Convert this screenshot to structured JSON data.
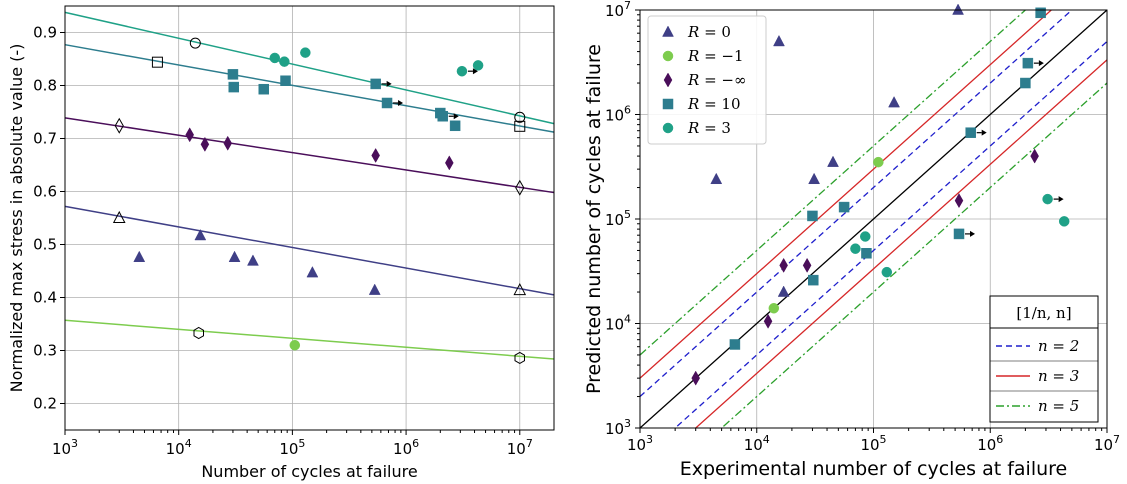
{
  "chart_data": [
    {
      "type": "scatter",
      "xlabel": "Number of cycles at failure",
      "ylabel": "Normalized max stress in absolute value (-)",
      "xscale": "log",
      "xlim": [
        1000,
        20000000
      ],
      "ylim": [
        0.15,
        0.95
      ],
      "xticks": [
        1000,
        10000,
        100000,
        1000000,
        10000000
      ],
      "xtick_labels": [
        [
          "10",
          "3"
        ],
        [
          "10",
          "4"
        ],
        [
          "10",
          "5"
        ],
        [
          "10",
          "6"
        ],
        [
          "10",
          "7"
        ]
      ],
      "yticks": [
        0.2,
        0.3,
        0.4,
        0.5,
        0.6,
        0.7,
        0.8,
        0.9
      ],
      "ytick_labels": [
        "0.2",
        "0.3",
        "0.4",
        "0.5",
        "0.6",
        "0.7",
        "0.8",
        "0.9"
      ],
      "grid": true,
      "series": [
        {
          "marker": "triangle",
          "color": "#3f3f86",
          "points": [
            [
              4500,
              0.476
            ],
            [
              15500,
              0.517
            ],
            [
              31000,
              0.476
            ],
            [
              45000,
              0.469
            ],
            [
              150000,
              0.447
            ],
            [
              530000,
              0.414
            ]
          ],
          "fit": [
            [
              1000,
              0.572
            ],
            [
              20000000,
              0.405
            ]
          ],
          "open_points": [
            {
              "marker": "triangle",
              "pt": [
                3000,
                0.55
              ]
            },
            {
              "marker": "triangle",
              "pt": [
                10000000,
                0.414
              ]
            }
          ]
        },
        {
          "marker": "circle",
          "color": "#7dcc4e",
          "points": [
            [
              105000,
              0.31
            ]
          ],
          "fit": [
            [
              1000,
              0.357
            ],
            [
              20000000,
              0.284
            ]
          ],
          "open_points": [
            {
              "marker": "hexagon",
              "pt": [
                15000,
                0.333
              ]
            },
            {
              "marker": "hexagon",
              "pt": [
                10000000,
                0.286
              ]
            }
          ]
        },
        {
          "marker": "diamond",
          "color": "#4a0e5a",
          "points": [
            [
              12500,
              0.707
            ],
            [
              17000,
              0.689
            ],
            [
              27000,
              0.691
            ],
            [
              540000,
              0.668
            ],
            [
              2400000,
              0.654
            ]
          ],
          "fit": [
            [
              1000,
              0.739
            ],
            [
              20000000,
              0.598
            ]
          ],
          "open_points": [
            {
              "marker": "diamond",
              "pt": [
                3000,
                0.724
              ]
            },
            {
              "marker": "diamond",
              "pt": [
                10000000,
                0.607
              ]
            }
          ]
        },
        {
          "marker": "square",
          "color": "#2d7d8e",
          "points": [
            [
              30000,
              0.821
            ],
            [
              30500,
              0.797
            ],
            [
              56000,
              0.793
            ],
            [
              87000,
              0.809
            ],
            [
              540000,
              0.803
            ],
            [
              680000,
              0.767
            ],
            [
              2000000,
              0.748
            ],
            [
              2100000,
              0.742
            ],
            [
              2700000,
              0.724
            ]
          ],
          "arrows": [
            [
              540000,
              0.803
            ],
            [
              680000,
              0.767
            ],
            [
              2100000,
              0.742
            ]
          ],
          "fit": [
            [
              1000,
              0.877
            ],
            [
              20000000,
              0.712
            ]
          ],
          "open_points": [
            {
              "marker": "square",
              "pt": [
                6500,
                0.844
              ]
            },
            {
              "marker": "square",
              "pt": [
                10000000,
                0.723
              ]
            }
          ]
        },
        {
          "marker": "circle",
          "color": "#1fa187",
          "points": [
            [
              70000,
              0.852
            ],
            [
              85000,
              0.845
            ],
            [
              130000,
              0.862
            ],
            [
              3100000,
              0.827
            ],
            [
              4300000,
              0.838
            ]
          ],
          "arrows": [
            [
              3100000,
              0.827
            ]
          ],
          "fit": [
            [
              1000,
              0.938
            ],
            [
              20000000,
              0.728
            ]
          ],
          "open_points": [
            {
              "marker": "circle",
              "pt": [
                14000,
                0.88
              ]
            },
            {
              "marker": "circle",
              "pt": [
                10000000,
                0.74
              ]
            }
          ]
        }
      ]
    },
    {
      "type": "scatter",
      "xlabel": "Experimental number of cycles at failure",
      "ylabel": "Predicted number of cycles at failure",
      "xscale": "log",
      "yscale": "log",
      "xlim": [
        1000,
        10000000
      ],
      "ylim": [
        1000,
        10000000
      ],
      "ticks": [
        1000,
        10000,
        100000,
        1000000,
        10000000
      ],
      "tick_labels": [
        [
          "10",
          "3"
        ],
        [
          "10",
          "4"
        ],
        [
          "10",
          "5"
        ],
        [
          "10",
          "6"
        ],
        [
          "10",
          "7"
        ]
      ],
      "grid": true,
      "legend": {
        "placement": "top-left",
        "entries": [
          {
            "label_italic": "R",
            "label_rest": " = 0",
            "marker": "triangle",
            "color": "#3f3f86"
          },
          {
            "label_italic": "R",
            "label_rest": " = −1",
            "marker": "circle",
            "color": "#7dcc4e"
          },
          {
            "label_italic": "R",
            "label_rest": " = −∞",
            "marker": "diamond",
            "color": "#4a0e5a"
          },
          {
            "label_italic": "R",
            "label_rest": " = 10",
            "marker": "square",
            "color": "#2d7d8e"
          },
          {
            "label_italic": "R",
            "label_rest": " = 3",
            "marker": "circle",
            "color": "#1fa187"
          }
        ]
      },
      "band_legend": {
        "placement": "bottom-right",
        "title": "[1/n, n]",
        "entries": [
          {
            "label": "n = 2",
            "factor": 2,
            "color": "#1f1fcc",
            "style": "dashed"
          },
          {
            "label": "n = 3",
            "factor": 3,
            "color": "#d62728",
            "style": "solid"
          },
          {
            "label": "n = 5",
            "factor": 5,
            "color": "#2ca02c",
            "style": "dashdot"
          }
        ]
      },
      "identity_line_color": "#000000",
      "series": [
        {
          "name": "R = 0",
          "marker": "triangle",
          "color": "#3f3f86",
          "points": [
            [
              4500,
              240000
            ],
            [
              15500,
              5000000
            ],
            [
              17000,
              20000
            ],
            [
              31000,
              240000
            ],
            [
              45000,
              350000
            ],
            [
              150000,
              1300000
            ],
            [
              530000,
              10000000
            ]
          ]
        },
        {
          "name": "R = −1",
          "marker": "circle",
          "color": "#7dcc4e",
          "points": [
            [
              14000,
              14000
            ],
            [
              110000,
              350000
            ]
          ]
        },
        {
          "name": "R = −∞",
          "marker": "diamond",
          "color": "#4a0e5a",
          "points": [
            [
              3000,
              3000
            ],
            [
              12500,
              10500
            ],
            [
              17000,
              36000
            ],
            [
              27000,
              36000
            ],
            [
              540000,
              150000
            ],
            [
              2400000,
              400000
            ]
          ]
        },
        {
          "name": "R = 10",
          "marker": "square",
          "color": "#2d7d8e",
          "points": [
            [
              6500,
              6300
            ],
            [
              30000,
              107000
            ],
            [
              30500,
              26000
            ],
            [
              56000,
              130000
            ],
            [
              87000,
              47000
            ],
            [
              540000,
              72000
            ],
            [
              680000,
              670000
            ],
            [
              2000000,
              2000000
            ],
            [
              2100000,
              3100000
            ],
            [
              2700000,
              9400000
            ]
          ],
          "arrows": [
            [
              540000,
              72000
            ],
            [
              680000,
              670000
            ],
            [
              2100000,
              3100000
            ]
          ]
        },
        {
          "name": "R = 3",
          "marker": "circle",
          "color": "#1fa187",
          "points": [
            [
              70000,
              52000
            ],
            [
              85000,
              68000
            ],
            [
              130000,
              31000
            ],
            [
              3100000,
              155000
            ],
            [
              4300000,
              95000
            ]
          ],
          "arrows": [
            [
              3100000,
              155000
            ]
          ]
        }
      ]
    }
  ]
}
